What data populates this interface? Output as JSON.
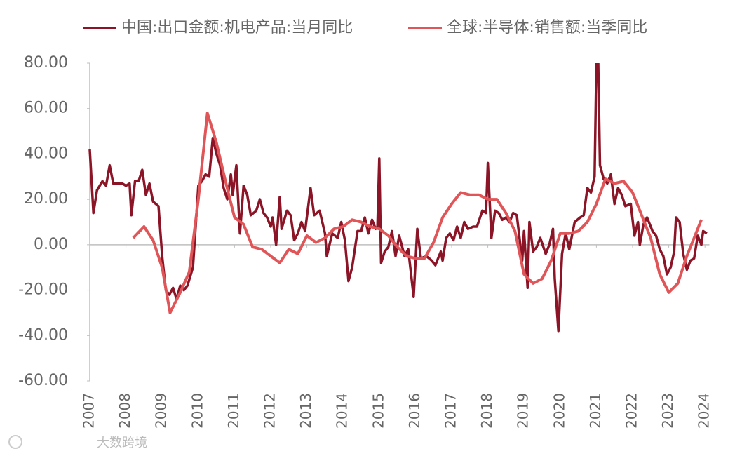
{
  "chart_data": {
    "type": "line",
    "watermark": "大数跨境",
    "xlim": [
      2007,
      2024.2
    ],
    "xticks": [
      2007,
      2008,
      2009,
      2010,
      2011,
      2012,
      2013,
      2014,
      2015,
      2016,
      2017,
      2018,
      2019,
      2020,
      2021,
      2022,
      2023,
      2024
    ],
    "ylim": [
      -60,
      80
    ],
    "yticks": [
      {
        "value": -60,
        "label": "-60.00"
      },
      {
        "value": -40,
        "label": "-40.00"
      },
      {
        "value": -20,
        "label": "-20.00"
      },
      {
        "value": 0,
        "label": "0.00"
      },
      {
        "value": 20,
        "label": "20.00"
      },
      {
        "value": 40,
        "label": "40.00"
      },
      {
        "value": 60,
        "label": "60.00"
      },
      {
        "value": 80,
        "label": "80.00"
      }
    ],
    "legend": "top",
    "series": [
      {
        "name": "中国:出口金额:机电产品:当月同比",
        "color": "#8b1426",
        "x": [
          2007.0,
          2007.1,
          2007.2,
          2007.35,
          2007.45,
          2007.55,
          2007.65,
          2007.9,
          2008.0,
          2008.1,
          2008.15,
          2008.25,
          2008.35,
          2008.45,
          2008.55,
          2008.65,
          2008.75,
          2008.9,
          2009.0,
          2009.1,
          2009.2,
          2009.3,
          2009.4,
          2009.5,
          2009.6,
          2009.7,
          2009.85,
          2010.0,
          2010.1,
          2010.2,
          2010.3,
          2010.4,
          2010.5,
          2010.6,
          2010.7,
          2010.8,
          2010.9,
          2010.95,
          2011.05,
          2011.15,
          2011.25,
          2011.35,
          2011.45,
          2011.6,
          2011.7,
          2011.8,
          2011.9,
          2012.0,
          2012.05,
          2012.15,
          2012.25,
          2012.3,
          2012.45,
          2012.55,
          2012.65,
          2012.75,
          2012.85,
          2012.95,
          2013.1,
          2013.2,
          2013.35,
          2013.5,
          2013.55,
          2013.7,
          2013.85,
          2013.95,
          2014.05,
          2014.15,
          2014.25,
          2014.4,
          2014.5,
          2014.6,
          2014.7,
          2014.8,
          2014.9,
          2014.95,
          2015.0,
          2015.05,
          2015.15,
          2015.25,
          2015.35,
          2015.45,
          2015.55,
          2015.7,
          2015.8,
          2015.95,
          2016.05,
          2016.15,
          2016.3,
          2016.45,
          2016.55,
          2016.7,
          2016.75,
          2016.85,
          2016.95,
          2017.05,
          2017.15,
          2017.25,
          2017.35,
          2017.45,
          2017.6,
          2017.7,
          2017.85,
          2017.95,
          2018.0,
          2018.1,
          2018.2,
          2018.3,
          2018.4,
          2018.5,
          2018.6,
          2018.7,
          2018.8,
          2018.95,
          2019.0,
          2019.1,
          2019.15,
          2019.25,
          2019.35,
          2019.45,
          2019.6,
          2019.7,
          2019.8,
          2019.85,
          2019.95,
          2020.05,
          2020.15,
          2020.25,
          2020.4,
          2020.55,
          2020.65,
          2020.75,
          2020.85,
          2020.95,
          2021.0,
          2021.05,
          2021.1,
          2021.2,
          2021.3,
          2021.4,
          2021.5,
          2021.6,
          2021.7,
          2021.8,
          2021.95,
          2022.05,
          2022.15,
          2022.2,
          2022.3,
          2022.4,
          2022.55,
          2022.65,
          2022.75,
          2022.85,
          2022.95,
          2023.05,
          2023.15,
          2023.2,
          2023.3,
          2023.4,
          2023.5,
          2023.6,
          2023.7,
          2023.8,
          2023.9,
          2023.95,
          2024.05
        ],
        "values": [
          42,
          14,
          24,
          28,
          26,
          35,
          27,
          27,
          26,
          27,
          13,
          28,
          28,
          33,
          22,
          27,
          19,
          17,
          -5,
          -20,
          -22,
          -19,
          -24,
          -18,
          -20,
          -18,
          -10,
          26,
          28,
          31,
          30,
          47,
          40,
          35,
          25,
          20,
          31,
          22,
          35,
          5,
          26,
          22,
          13,
          15,
          20,
          14,
          12,
          8,
          12,
          0,
          21,
          7,
          15,
          13,
          2,
          5,
          10,
          6,
          25,
          13,
          15,
          5,
          -5,
          5,
          3,
          10,
          2,
          -16,
          -10,
          6,
          6,
          12,
          5,
          11,
          7,
          8,
          38,
          -8,
          -3,
          -1,
          6,
          -5,
          4,
          -5,
          -2,
          -23,
          7,
          -6,
          -5,
          -7,
          -9,
          -3,
          -7,
          3,
          5,
          2,
          8,
          3,
          10,
          7,
          8,
          8,
          15,
          14,
          36,
          3,
          15,
          14,
          11,
          12,
          10,
          14,
          13,
          -7,
          6,
          -19,
          10,
          -3,
          -1,
          3,
          -4,
          0,
          7,
          -15,
          -38,
          -4,
          5,
          -2,
          10,
          12,
          13,
          25,
          23,
          30,
          80,
          80,
          35,
          29,
          27,
          31,
          18,
          25,
          22,
          17,
          18,
          4,
          10,
          0,
          9,
          12,
          6,
          4,
          -2,
          -5,
          -13,
          -10,
          -3,
          12,
          10,
          -4,
          -11,
          -7,
          -6,
          4,
          0,
          6,
          5
        ]
      },
      {
        "name": "全球:半导体:销售额:当季同比",
        "color": "#e05558",
        "x": [
          2008.2,
          2008.5,
          2008.75,
          2009.0,
          2009.22,
          2009.5,
          2009.75,
          2010.0,
          2010.25,
          2010.5,
          2010.75,
          2011.0,
          2011.25,
          2011.5,
          2011.75,
          2012.0,
          2012.25,
          2012.5,
          2012.75,
          2013.0,
          2013.25,
          2013.5,
          2013.75,
          2014.0,
          2014.25,
          2014.5,
          2014.75,
          2015.0,
          2015.25,
          2015.5,
          2015.75,
          2016.0,
          2016.25,
          2016.5,
          2016.75,
          2017.0,
          2017.25,
          2017.5,
          2017.75,
          2018.0,
          2018.25,
          2018.5,
          2018.75,
          2019.0,
          2019.25,
          2019.5,
          2019.75,
          2020.0,
          2020.25,
          2020.5,
          2020.75,
          2021.0,
          2021.25,
          2021.5,
          2021.75,
          2022.0,
          2022.25,
          2022.5,
          2022.75,
          2023.0,
          2023.25,
          2023.5,
          2023.9
        ],
        "values": [
          3,
          8,
          2,
          -10,
          -30,
          -21,
          -12,
          20,
          58,
          45,
          28,
          12,
          9,
          -1,
          -2,
          -5,
          -8,
          -2,
          -4,
          4,
          1,
          3,
          7,
          8,
          11,
          10,
          8,
          7,
          4,
          -1,
          -5,
          -6,
          -6,
          1,
          12,
          18,
          23,
          22,
          22,
          20,
          20,
          14,
          6,
          -13,
          -17,
          -15,
          -7,
          5,
          5,
          6,
          10,
          18,
          29,
          27,
          28,
          23,
          13,
          3,
          -13,
          -21,
          -17,
          -5,
          11
        ]
      }
    ]
  }
}
